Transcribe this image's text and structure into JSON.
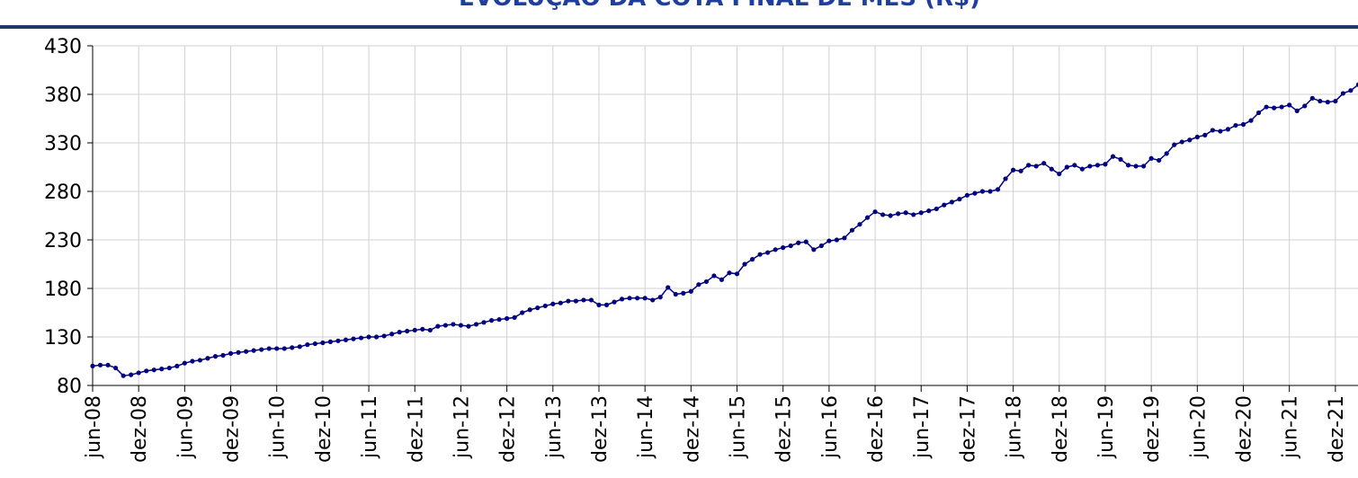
{
  "chart_data": {
    "type": "line",
    "title": "EVOLUÇÃO DA COTA FINAL DE MÊS (R$)",
    "categories": [
      "jun-08",
      null,
      null,
      null,
      null,
      null,
      "dez-08",
      null,
      null,
      null,
      null,
      null,
      "jun-09",
      null,
      null,
      null,
      null,
      null,
      "dez-09",
      null,
      null,
      null,
      null,
      null,
      "jun-10",
      null,
      null,
      null,
      null,
      null,
      "dez-10",
      null,
      null,
      null,
      null,
      null,
      "jun-11",
      null,
      null,
      null,
      null,
      null,
      "dez-11",
      null,
      null,
      null,
      null,
      null,
      "jun-12",
      null,
      null,
      null,
      null,
      null,
      "dez-12",
      null,
      null,
      null,
      null,
      null,
      "jun-13",
      null,
      null,
      null,
      null,
      null,
      "dez-13",
      null,
      null,
      null,
      null,
      null,
      "jun-14",
      null,
      null,
      null,
      null,
      null,
      "dez-14",
      null,
      null,
      null,
      null,
      null,
      "jun-15",
      null,
      null,
      null,
      null,
      null,
      "dez-15",
      null,
      null,
      null,
      null,
      null,
      "jun-16",
      null,
      null,
      null,
      null,
      null,
      "dez-16",
      null,
      null,
      null,
      null,
      null,
      "jun-17",
      null,
      null,
      null,
      null,
      null,
      "dez-17",
      null,
      null,
      null,
      null,
      null,
      "jun-18",
      null,
      null,
      null,
      null,
      null,
      "dez-18",
      null,
      null,
      null,
      null,
      null,
      "jun-19",
      null,
      null,
      null,
      null,
      null,
      "dez-19",
      null,
      null,
      null,
      null,
      null,
      "jun-20",
      null,
      null,
      null,
      null,
      null,
      "dez-20",
      null,
      null,
      null,
      null,
      null,
      "jun-21",
      null,
      null,
      null,
      null,
      null,
      "dez-21",
      null,
      null,
      null
    ],
    "values": [
      100,
      101,
      101,
      98,
      90,
      91,
      93,
      95,
      96,
      97,
      98,
      100,
      103,
      105,
      106,
      108,
      110,
      111,
      113,
      114,
      115,
      116,
      117,
      118,
      118,
      118,
      119,
      120,
      122,
      123,
      124,
      125,
      126,
      127,
      128,
      129,
      130,
      130,
      131,
      133,
      135,
      136,
      137,
      138,
      137,
      141,
      142,
      143,
      142,
      141,
      143,
      145,
      147,
      148,
      149,
      150,
      155,
      158,
      160,
      162,
      164,
      165,
      167,
      167,
      168,
      168,
      163,
      163,
      166,
      169,
      170,
      170,
      170,
      168,
      171,
      181,
      174,
      175,
      177,
      184,
      187,
      193,
      189,
      196,
      195,
      205,
      210,
      215,
      217,
      220,
      222,
      224,
      227,
      228,
      220,
      224,
      229,
      230,
      232,
      240,
      246,
      253,
      259,
      256,
      255,
      257,
      258,
      256,
      258,
      260,
      262,
      266,
      269,
      272,
      276,
      278,
      280,
      280,
      282,
      293,
      302,
      301,
      307,
      306,
      309,
      303,
      298,
      305,
      307,
      303,
      306,
      307,
      308,
      316,
      313,
      307,
      306,
      306,
      314,
      312,
      319,
      328,
      331,
      333,
      336,
      338,
      343,
      342,
      344,
      348,
      349,
      353,
      361,
      367,
      366,
      367,
      369,
      363,
      368,
      376,
      373,
      372,
      373,
      381,
      384,
      390
    ],
    "color": "#000080",
    "ylim": [
      80,
      430
    ],
    "yticks": [
      80,
      130,
      180,
      230,
      280,
      330,
      380,
      430
    ],
    "grid": true
  }
}
